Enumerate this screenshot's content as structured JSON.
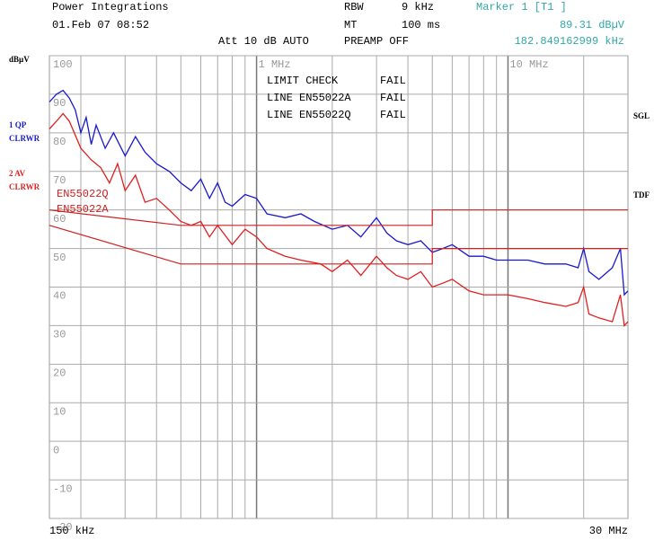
{
  "header": {
    "company": "Power Integrations",
    "date": "01.Feb 07 08:52",
    "rbw_label": "RBW",
    "rbw": "9 kHz",
    "mt_label": "MT",
    "mt": "100 ms",
    "att": "Att 10 dB AUTO",
    "preamp": "PREAMP OFF",
    "marker_name": "Marker 1 [T1 ]",
    "marker_level": "89.31 dBµV",
    "marker_freq": "182.849162999 kHz"
  },
  "side_labels": {
    "unit": "dBµV",
    "trace1_detector": "1 QP",
    "trace1_mode": "CLRWR",
    "trace2_detector": "2 AV",
    "trace2_mode": "CLRWR",
    "sgl": "SGL",
    "tdf": "TDF"
  },
  "limit_check": [
    {
      "label": "LIMIT CHECK",
      "result": "FAIL"
    },
    {
      "label": "LINE EN55022A",
      "result": "FAIL"
    },
    {
      "label": "LINE EN55022Q",
      "result": "FAIL"
    }
  ],
  "chart_data": {
    "type": "line",
    "xscale": "log",
    "grid": true,
    "xlim": [
      0.15,
      30
    ],
    "x_start_label": "150 kHz",
    "x_end_label": "30 MHz",
    "xticks": [
      {
        "value": 1,
        "label": "1 MHz"
      },
      {
        "value": 10,
        "label": "10 MHz"
      }
    ],
    "x_minor_grid": [
      0.2,
      0.3,
      0.4,
      0.5,
      0.6,
      0.7,
      0.8,
      0.9,
      2,
      3,
      4,
      5,
      6,
      7,
      8,
      9,
      20
    ],
    "ylim": [
      -20,
      100
    ],
    "yticks": [
      -20,
      -10,
      0,
      10,
      20,
      30,
      40,
      50,
      60,
      70,
      80,
      90,
      100
    ],
    "series": [
      {
        "name": "1 QP",
        "color": "#1a1acc",
        "x": [
          0.15,
          0.16,
          0.17,
          0.18,
          0.19,
          0.2,
          0.21,
          0.22,
          0.23,
          0.25,
          0.27,
          0.3,
          0.33,
          0.36,
          0.4,
          0.45,
          0.5,
          0.55,
          0.6,
          0.65,
          0.7,
          0.75,
          0.8,
          0.9,
          1.0,
          1.1,
          1.3,
          1.5,
          1.7,
          2,
          2.3,
          2.6,
          3,
          3.3,
          3.6,
          4,
          4.5,
          5,
          5.5,
          6,
          7,
          8,
          9,
          10,
          12,
          14,
          17,
          19,
          20,
          21,
          23,
          26,
          28,
          29,
          30
        ],
        "values": [
          88,
          90,
          91,
          89,
          86,
          80,
          84,
          77,
          82,
          76,
          80,
          74,
          79,
          75,
          72,
          70,
          67,
          65,
          68,
          63,
          67,
          62,
          61,
          64,
          63,
          59,
          58,
          59,
          57,
          55,
          56,
          53,
          58,
          54,
          52,
          51,
          52,
          49,
          50,
          51,
          48,
          48,
          47,
          47,
          47,
          46,
          46,
          45,
          50,
          44,
          42,
          45,
          50,
          38,
          39
        ]
      },
      {
        "name": "2 AV",
        "color": "#e02020",
        "x": [
          0.15,
          0.16,
          0.17,
          0.18,
          0.2,
          0.22,
          0.24,
          0.26,
          0.28,
          0.3,
          0.33,
          0.36,
          0.4,
          0.45,
          0.5,
          0.55,
          0.6,
          0.65,
          0.7,
          0.8,
          0.9,
          1.0,
          1.1,
          1.3,
          1.5,
          1.8,
          2,
          2.3,
          2.6,
          3,
          3.3,
          3.6,
          4,
          4.5,
          5,
          5.5,
          6,
          7,
          8,
          9,
          10,
          12,
          14,
          17,
          19,
          20,
          21,
          23,
          26,
          28,
          29,
          30
        ],
        "values": [
          81,
          83,
          85,
          83,
          76,
          73,
          71,
          67,
          72,
          65,
          69,
          62,
          63,
          60,
          57,
          56,
          57,
          53,
          56,
          51,
          55,
          53,
          50,
          48,
          47,
          46,
          44,
          47,
          43,
          48,
          45,
          43,
          42,
          44,
          40,
          41,
          42,
          39,
          38,
          38,
          38,
          37,
          36,
          35,
          36,
          40,
          33,
          32,
          31,
          38,
          30,
          31
        ]
      },
      {
        "name": "EN55022Q",
        "color": "#d02020",
        "limit": true,
        "x": [
          0.15,
          0.5,
          5,
          5,
          30
        ],
        "values": [
          60,
          56,
          56,
          60,
          60
        ]
      },
      {
        "name": "EN55022A",
        "color": "#d02020",
        "limit": true,
        "x": [
          0.15,
          0.5,
          5,
          5,
          30
        ],
        "values": [
          56,
          46,
          46,
          50,
          50
        ]
      }
    ]
  }
}
